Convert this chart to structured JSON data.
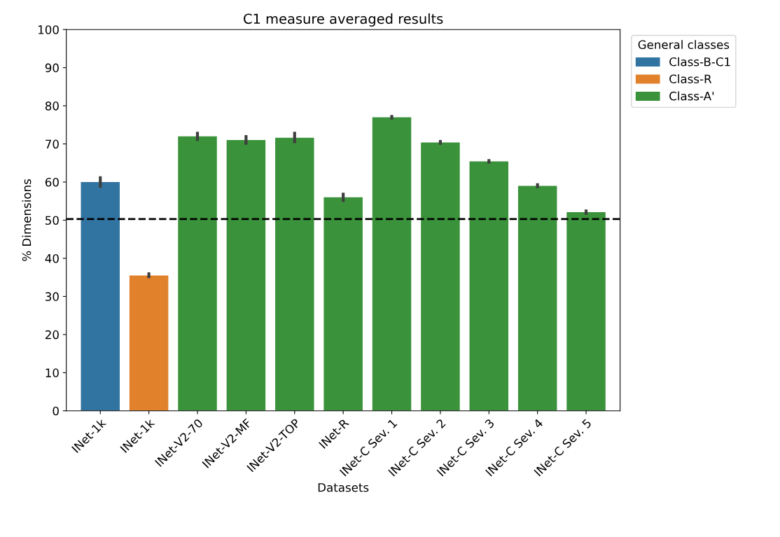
{
  "chart_data": {
    "type": "bar",
    "title": "C1 measure averaged results",
    "xlabel": "Datasets",
    "ylabel": "% Dimensions",
    "legend_title": "General classes",
    "categories": [
      "INet-1k",
      "INet-1k",
      "INet-V2-70",
      "INet-V2-MF",
      "INet-V2-TOP",
      "INet-R",
      "INet-C Sev. 1",
      "INet-C Sev. 2",
      "INet-C Sev. 3",
      "INet-C Sev. 4",
      "INet-C Sev. 5"
    ],
    "series": [
      {
        "name": "Class-B-C1",
        "color": "#3274a1",
        "values": [
          60,
          null,
          null,
          null,
          null,
          null,
          null,
          null,
          null,
          null,
          null
        ],
        "errors": [
          [
            58.5,
            61.5
          ],
          null,
          null,
          null,
          null,
          null,
          null,
          null,
          null,
          null,
          null
        ]
      },
      {
        "name": "Class-R",
        "color": "#e1812c",
        "values": [
          null,
          35.5,
          null,
          null,
          null,
          null,
          null,
          null,
          null,
          null,
          null
        ],
        "errors": [
          null,
          [
            34.8,
            36.3
          ],
          null,
          null,
          null,
          null,
          null,
          null,
          null,
          null,
          null
        ]
      },
      {
        "name": "Class-A'",
        "color": "#3a923a",
        "values": [
          null,
          null,
          72,
          71,
          71.6,
          56,
          77,
          70.4,
          65.4,
          59,
          52.1
        ],
        "errors": [
          null,
          null,
          [
            70.8,
            73.2
          ],
          [
            69.8,
            72.3
          ],
          [
            70.2,
            73.2
          ],
          [
            54.8,
            57.2
          ],
          [
            76.4,
            77.6
          ],
          [
            69.8,
            71
          ],
          [
            64.8,
            66
          ],
          [
            58.4,
            59.7
          ],
          [
            51.4,
            52.8
          ]
        ]
      }
    ],
    "ylim": [
      0,
      100
    ],
    "yticks": [
      0,
      10,
      20,
      30,
      40,
      50,
      60,
      70,
      80,
      90,
      100
    ],
    "ref_lines": [
      {
        "axis": "y",
        "value": 50.3,
        "label": null,
        "color": "#000000",
        "line_style": "dashed"
      }
    ],
    "legend": "right",
    "grid": false
  }
}
